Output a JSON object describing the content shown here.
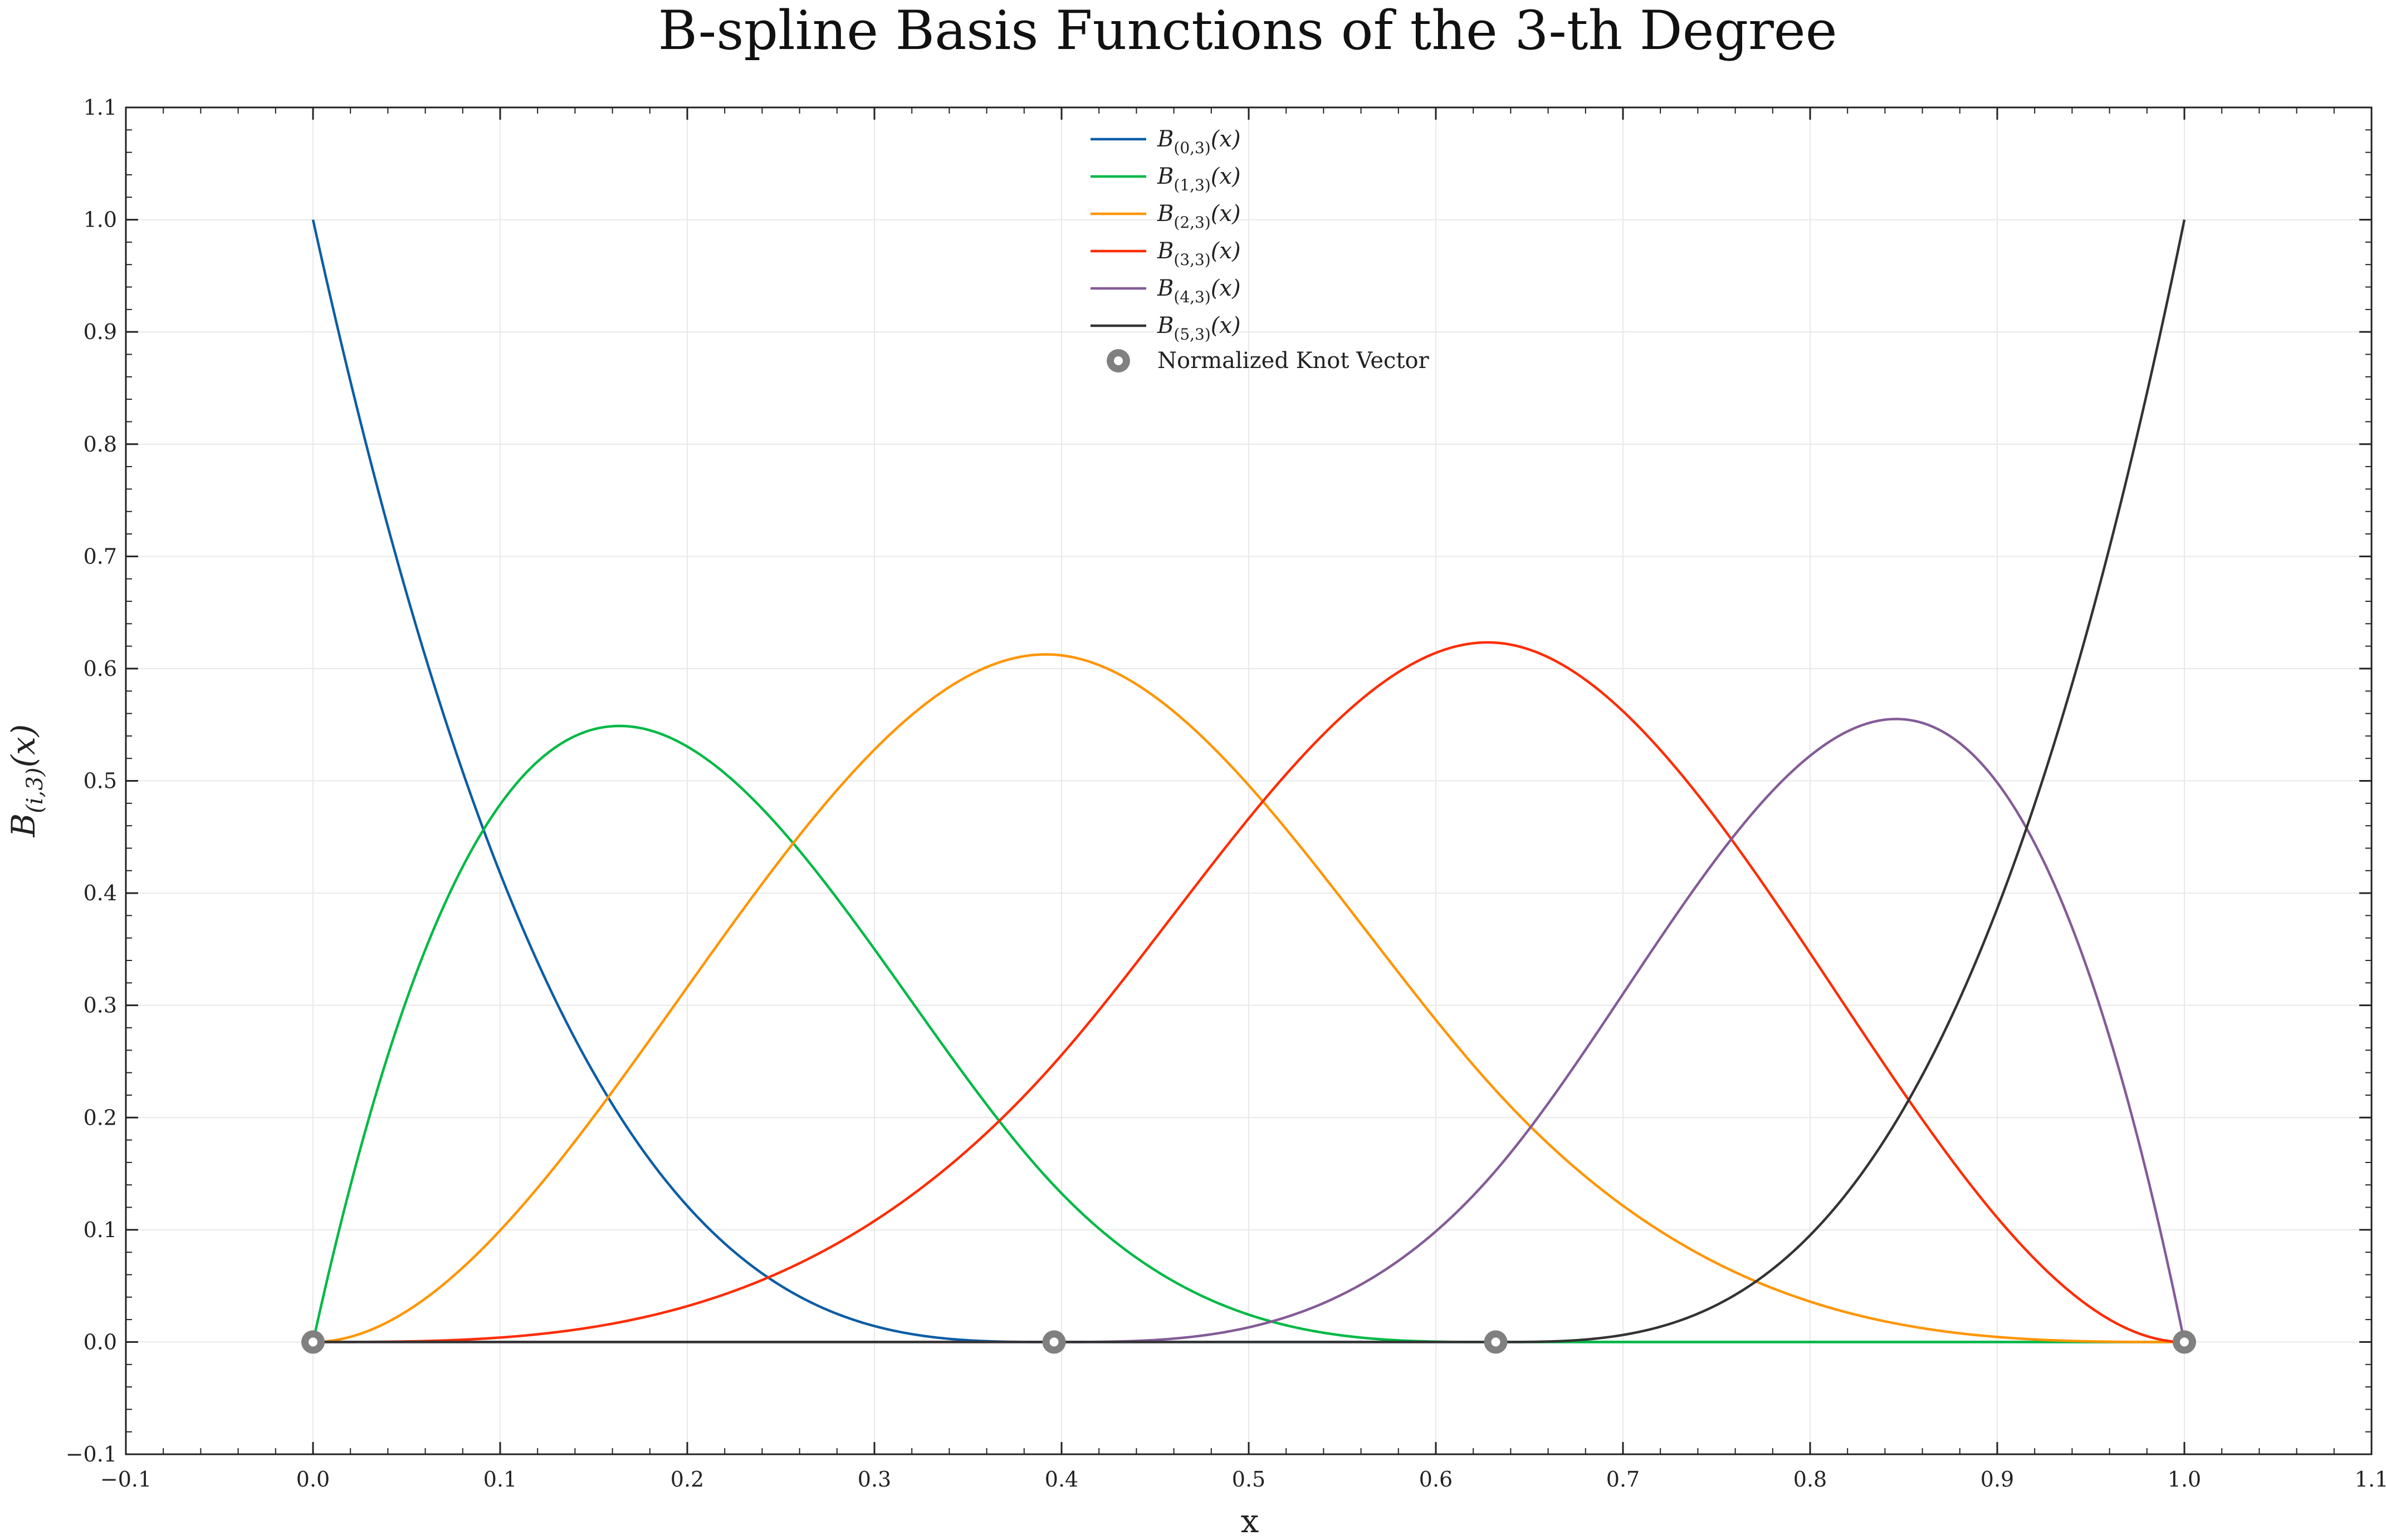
{
  "chart_data": {
    "type": "line",
    "title": "B-spline Basis Functions of the 3-th Degree",
    "xlabel": "x",
    "ylabel": "B(i,3)(x)",
    "xlim": [
      -0.1,
      1.1
    ],
    "ylim": [
      -0.1,
      1.1
    ],
    "x_ticks": [
      "−0.1",
      "0.0",
      "0.1",
      "0.2",
      "0.3",
      "0.4",
      "0.5",
      "0.6",
      "0.7",
      "0.8",
      "0.9",
      "1.0",
      "1.1"
    ],
    "y_ticks": [
      "−0.1",
      "0.0",
      "0.1",
      "0.2",
      "0.3",
      "0.4",
      "0.5",
      "0.6",
      "0.7",
      "0.8",
      "0.9",
      "1.0",
      "1.1"
    ],
    "grid": true,
    "legend_position": "top-center",
    "knots": [
      0,
      0,
      0,
      0,
      0.396,
      0.632,
      1,
      1,
      1,
      1
    ],
    "series": [
      {
        "name": "B(0,3)(x)",
        "legend_sub": "(0,3)",
        "color": "#0C5DA5"
      },
      {
        "name": "B(1,3)(x)",
        "legend_sub": "(1,3)",
        "color": "#00B945"
      },
      {
        "name": "B(2,3)(x)",
        "legend_sub": "(2,3)",
        "color": "#FF9500"
      },
      {
        "name": "B(3,3)(x)",
        "legend_sub": "(3,3)",
        "color": "#FF2C00"
      },
      {
        "name": "B(4,3)(x)",
        "legend_sub": "(4,3)",
        "color": "#845B97"
      },
      {
        "name": "B(5,3)(x)",
        "legend_sub": "(5,3)",
        "color": "#333333"
      }
    ],
    "knot_markers": {
      "name": "Normalized Knot Vector",
      "x": [
        0.0,
        0.396,
        0.632,
        1.0
      ],
      "y": [
        0.0,
        0.0,
        0.0,
        0.0
      ],
      "color": "#808080"
    }
  }
}
